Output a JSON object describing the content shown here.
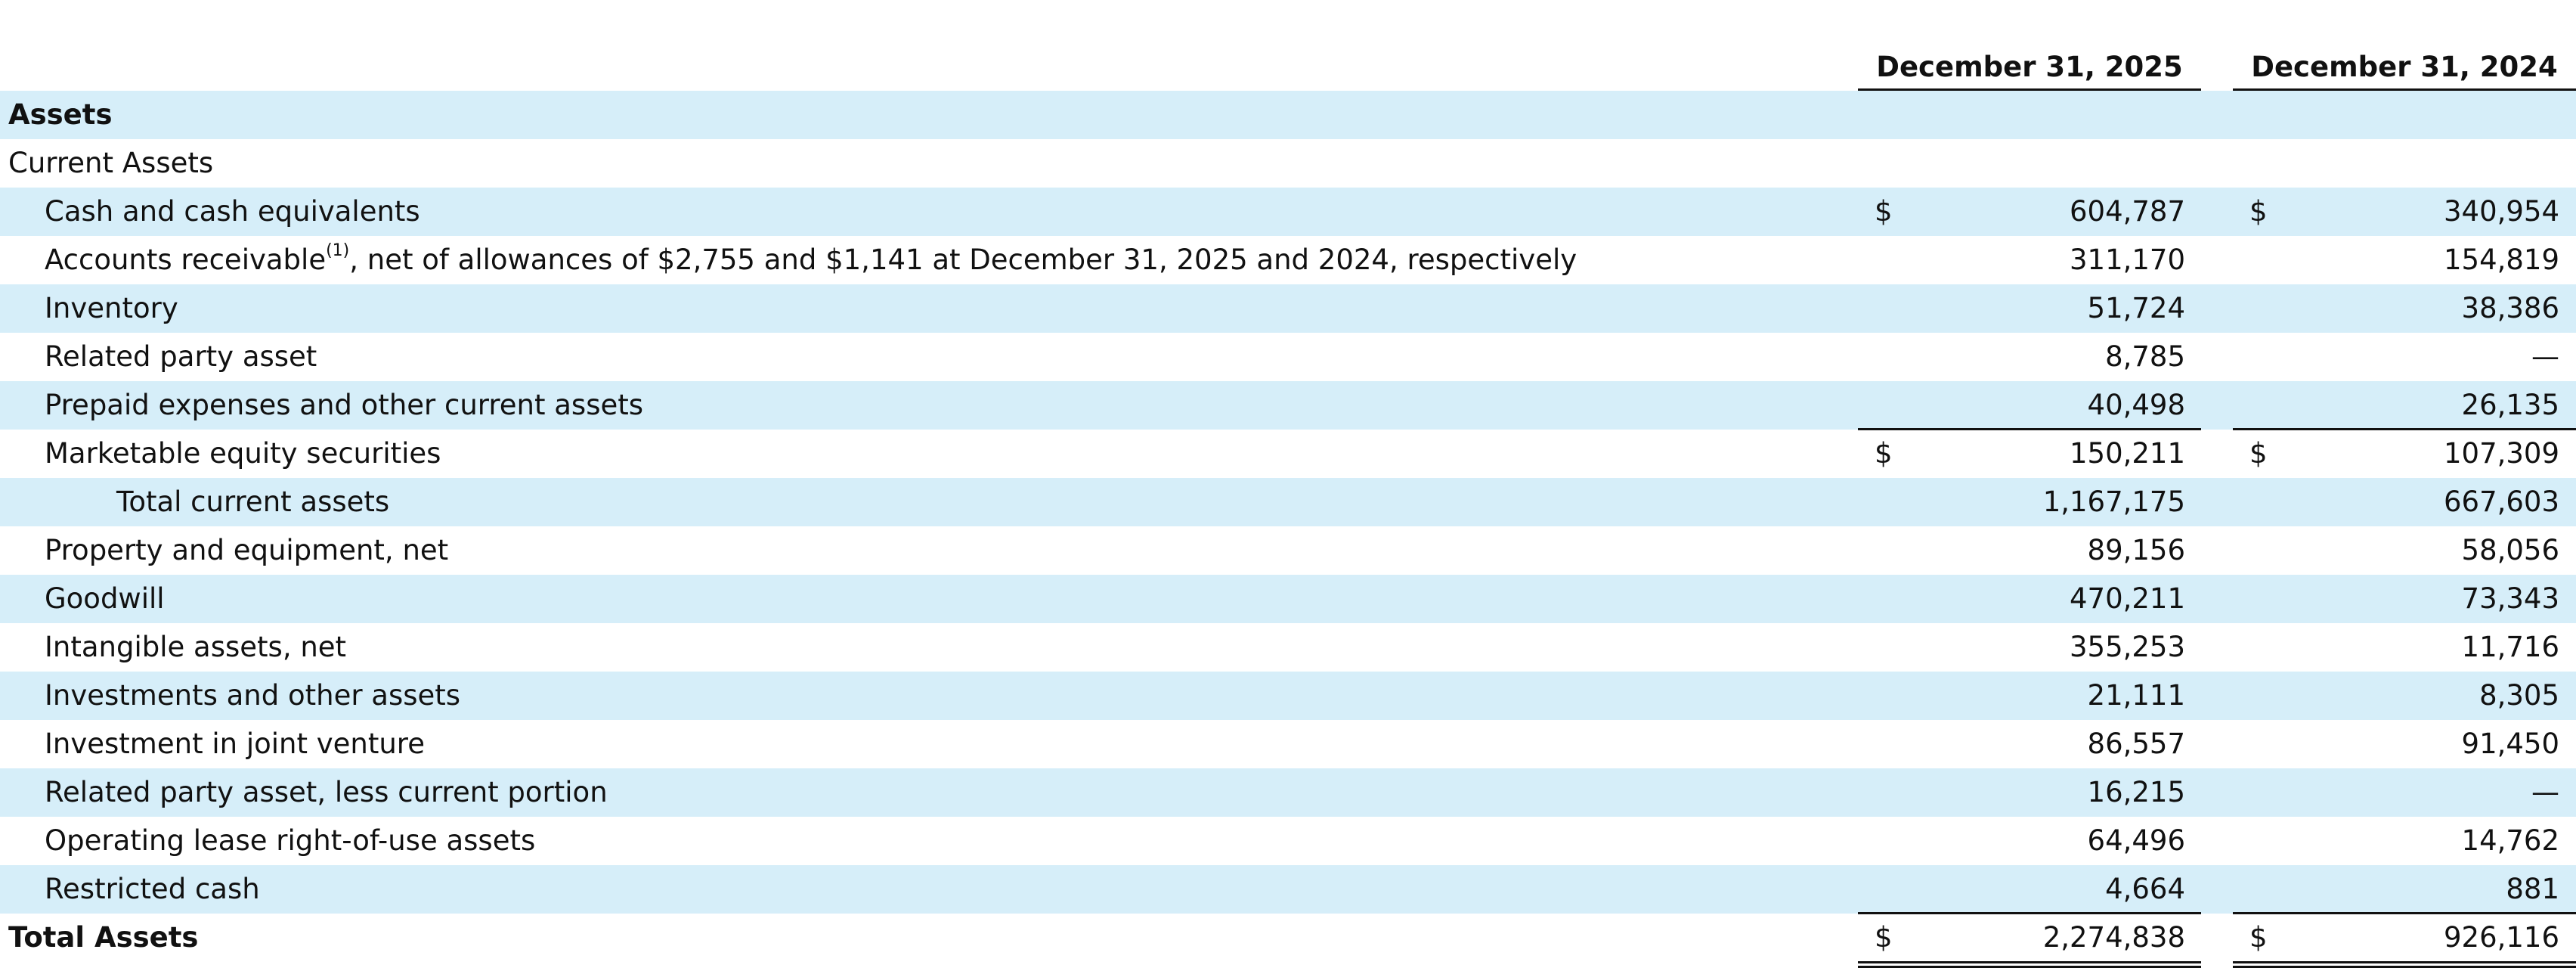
{
  "table": {
    "columns": [
      "December 31, 2025",
      "December 31, 2024"
    ],
    "rows": [
      {
        "label": "Assets"
      },
      {
        "label": "Current Assets"
      },
      {
        "label": "Cash and cash equivalents",
        "cells": [
          {
            "currency": "$",
            "value": "604,787"
          },
          {
            "currency": "$",
            "value": "340,954"
          }
        ]
      },
      {
        "label": "Accounts receivable",
        "footnote": "(1)",
        "label_cont": ", net of allowances of $2,755 and $1,141 at December 31, 2025 and 2024, respectively",
        "cells": [
          {
            "value": "311,170"
          },
          {
            "value": "154,819"
          }
        ]
      },
      {
        "label": "Inventory",
        "cells": [
          {
            "value": "51,724"
          },
          {
            "value": "38,386"
          }
        ]
      },
      {
        "label": "Related party asset",
        "cells": [
          {
            "value": "8,785"
          },
          {
            "value": "—"
          }
        ]
      },
      {
        "label": "Prepaid expenses and other current assets",
        "cells": [
          {
            "value": "40,498"
          },
          {
            "value": "26,135"
          }
        ]
      },
      {
        "label": "Marketable equity securities",
        "cells": [
          {
            "currency": "$",
            "value": "150,211"
          },
          {
            "currency": "$",
            "value": "107,309"
          }
        ]
      },
      {
        "label": "Total current assets",
        "cells": [
          {
            "value": "1,167,175"
          },
          {
            "value": "667,603"
          }
        ]
      },
      {
        "label": "Property and equipment, net",
        "cells": [
          {
            "value": "89,156"
          },
          {
            "value": "58,056"
          }
        ]
      },
      {
        "label": "Goodwill",
        "cells": [
          {
            "value": "470,211"
          },
          {
            "value": "73,343"
          }
        ]
      },
      {
        "label": "Intangible assets, net",
        "cells": [
          {
            "value": "355,253"
          },
          {
            "value": "11,716"
          }
        ]
      },
      {
        "label": "Investments and other assets",
        "cells": [
          {
            "value": "21,111"
          },
          {
            "value": "8,305"
          }
        ]
      },
      {
        "label": "Investment in joint venture",
        "cells": [
          {
            "value": "86,557"
          },
          {
            "value": "91,450"
          }
        ]
      },
      {
        "label": "Related party asset, less current portion",
        "cells": [
          {
            "value": "16,215"
          },
          {
            "value": "—"
          }
        ]
      },
      {
        "label": "Operating lease right-of-use assets",
        "cells": [
          {
            "value": "64,496"
          },
          {
            "value": "14,762"
          }
        ]
      },
      {
        "label": "Restricted cash",
        "cells": [
          {
            "value": "4,664"
          },
          {
            "value": "881"
          }
        ]
      },
      {
        "label": "Total Assets",
        "cells": [
          {
            "currency": "$",
            "value": "2,274,838"
          },
          {
            "currency": "$",
            "value": "926,116"
          }
        ]
      }
    ]
  }
}
